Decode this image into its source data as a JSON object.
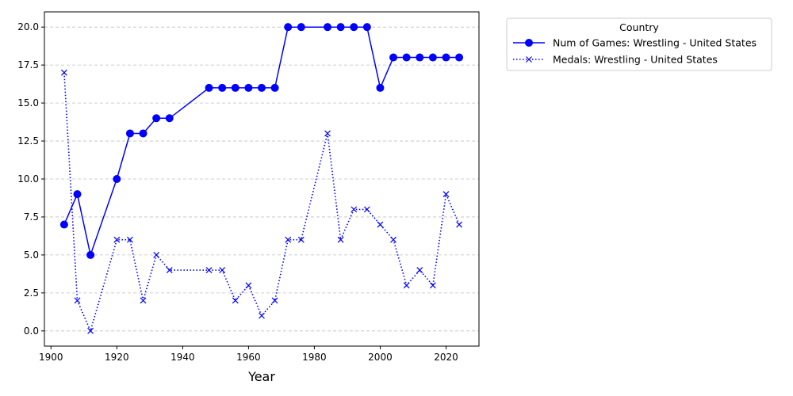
{
  "chart_data": {
    "type": "line",
    "xlabel": "Year",
    "ylabel": "",
    "xlim": [
      1898,
      2030
    ],
    "ylim": [
      -1.0,
      21.0
    ],
    "xticks": [
      1900,
      1920,
      1940,
      1960,
      1980,
      2000,
      2020
    ],
    "yticks": [
      0.0,
      2.5,
      5.0,
      7.5,
      10.0,
      12.5,
      15.0,
      17.5,
      20.0
    ],
    "xtick_labels": [
      "1900",
      "1920",
      "1940",
      "1960",
      "1980",
      "2000",
      "2020"
    ],
    "ytick_labels": [
      "0.0",
      "2.5",
      "5.0",
      "7.5",
      "10.0",
      "12.5",
      "15.0",
      "17.5",
      "20.0"
    ],
    "grid": "horizontal-dashed",
    "legend": {
      "title": "Country",
      "placement": "outside-top-right"
    },
    "series": [
      {
        "name": "Num of Games: Wrestling - United States",
        "color": "#0000ff",
        "line_style": "solid",
        "marker": "circle",
        "x": [
          1904,
          1908,
          1912,
          1920,
          1924,
          1928,
          1932,
          1936,
          1948,
          1952,
          1956,
          1960,
          1964,
          1968,
          1972,
          1976,
          1984,
          1988,
          1992,
          1996,
          2000,
          2004,
          2008,
          2012,
          2016,
          2020,
          2024
        ],
        "y": [
          7,
          9,
          5,
          10,
          13,
          13,
          14,
          14,
          16,
          16,
          16,
          16,
          16,
          16,
          20,
          20,
          20,
          20,
          20,
          20,
          16,
          18,
          18,
          18,
          18,
          18,
          18
        ]
      },
      {
        "name": "Medals: Wrestling - United States",
        "color": "#0000ff",
        "line_style": "dotted",
        "marker": "x",
        "x": [
          1904,
          1908,
          1912,
          1920,
          1924,
          1928,
          1932,
          1936,
          1948,
          1952,
          1956,
          1960,
          1964,
          1968,
          1972,
          1976,
          1984,
          1988,
          1992,
          1996,
          2000,
          2004,
          2008,
          2012,
          2016,
          2020,
          2024
        ],
        "y": [
          17,
          2,
          0,
          6,
          6,
          2,
          5,
          4,
          4,
          4,
          2,
          3,
          1,
          2,
          6,
          6,
          13,
          6,
          8,
          8,
          7,
          6,
          3,
          4,
          3,
          9,
          7
        ]
      }
    ]
  }
}
